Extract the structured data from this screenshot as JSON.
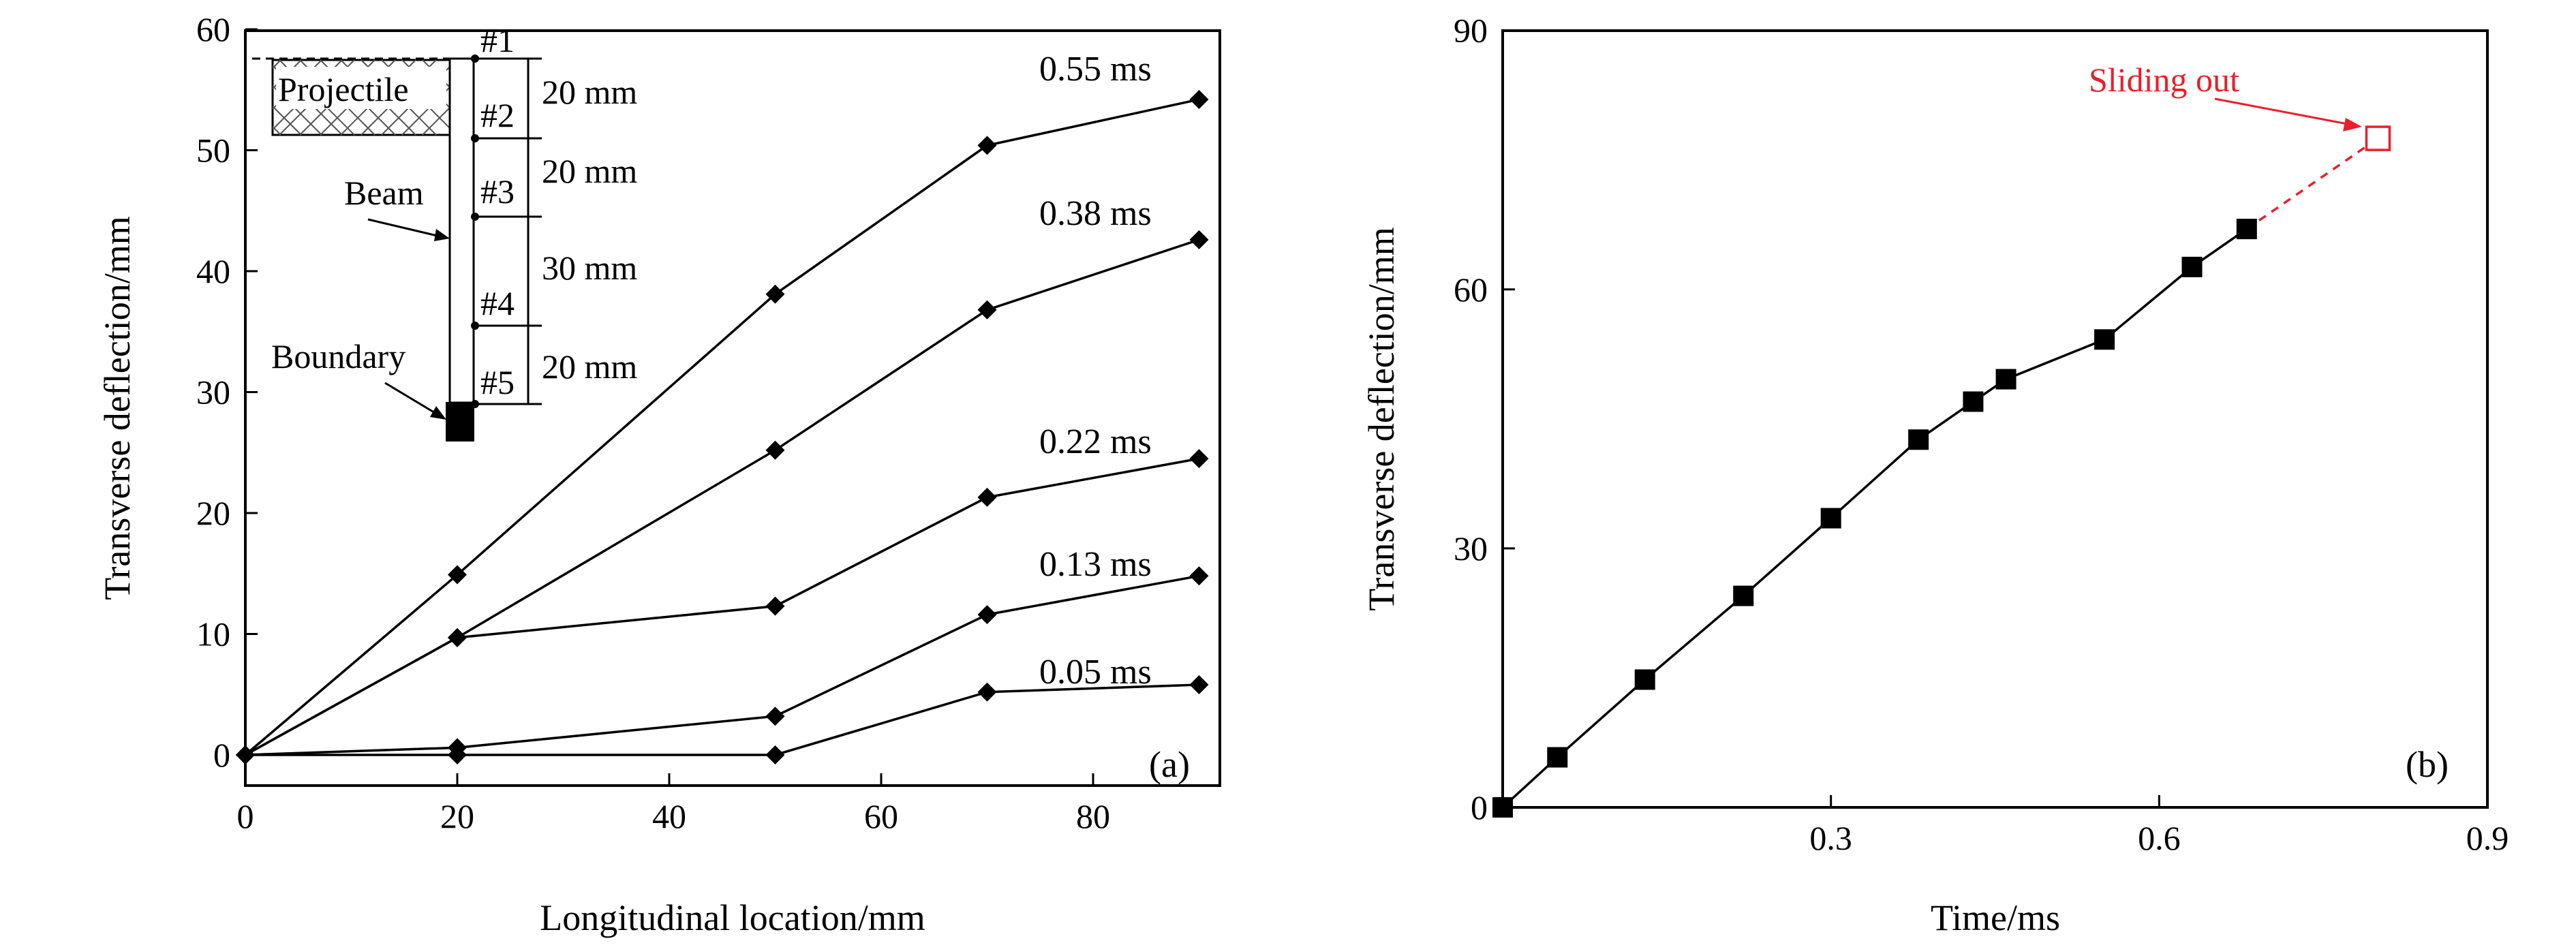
{
  "colors": {
    "axis": "#000000",
    "series": "#000000",
    "annotation": "#e8202a"
  },
  "chart_data": [
    {
      "type": "line",
      "panel_label": "(a)",
      "xlabel": "Longitudinal location/mm",
      "ylabel": "Transverse deflection/mm",
      "xlim": [
        0,
        92
      ],
      "ylim": [
        0,
        60
      ],
      "xticks": [
        0,
        20,
        40,
        60,
        80
      ],
      "yticks": [
        0,
        10,
        20,
        30,
        40,
        50,
        60
      ],
      "xtick_labels": [
        "0",
        "20",
        "40",
        "60",
        "80"
      ],
      "ytick_labels": [
        "0",
        "10",
        "20",
        "30",
        "40",
        "50",
        "60"
      ],
      "x": [
        0,
        20,
        50,
        70,
        90
      ],
      "marker": "diamond",
      "series": [
        {
          "name": "0.05 ms",
          "values": [
            0,
            0,
            0,
            5.2,
            5.8
          ]
        },
        {
          "name": "0.13 ms",
          "values": [
            0,
            0.6,
            3.2,
            11.6,
            14.8
          ]
        },
        {
          "name": "0.22 ms",
          "values": [
            0,
            9.7,
            12.3,
            21.3,
            24.5
          ]
        },
        {
          "name": "0.38 ms",
          "values": [
            0,
            9.7,
            25.2,
            36.8,
            42.6
          ]
        },
        {
          "name": "0.55 ms",
          "values": [
            0,
            14.9,
            38.1,
            50.4,
            54.2
          ]
        }
      ],
      "inset": {
        "projectile_label": "Projectile",
        "beam_label": "Beam",
        "boundary_label": "Boundary",
        "points": [
          "#1",
          "#2",
          "#3",
          "#4",
          "#5"
        ],
        "spacings": [
          "20 mm",
          "20 mm",
          "30 mm",
          "20 mm"
        ]
      }
    },
    {
      "type": "line",
      "panel_label": "(b)",
      "xlabel": "Time/ms",
      "ylabel": "Transverse deflection/mm",
      "xlim": [
        0,
        0.9
      ],
      "ylim": [
        0,
        90
      ],
      "xticks": [
        0.3,
        0.6,
        0.9
      ],
      "yticks": [
        0,
        30,
        60,
        90
      ],
      "xtick_labels": [
        "0.3",
        "0.6",
        "0.9"
      ],
      "ytick_labels": [
        "0",
        "30",
        "60",
        "90"
      ],
      "marker": "square",
      "series": [
        {
          "name": "Transverse deflection",
          "x": [
            0,
            0.05,
            0.13,
            0.22,
            0.3,
            0.38,
            0.43,
            0.46,
            0.55,
            0.63,
            0.68
          ],
          "values": [
            0,
            5.8,
            14.8,
            24.5,
            33.5,
            42.6,
            47,
            49.6,
            54.2,
            62.6,
            67
          ]
        }
      ],
      "extrapolated_point": {
        "x": 0.8,
        "y": 77.5
      },
      "annotation": "Sliding out"
    }
  ]
}
